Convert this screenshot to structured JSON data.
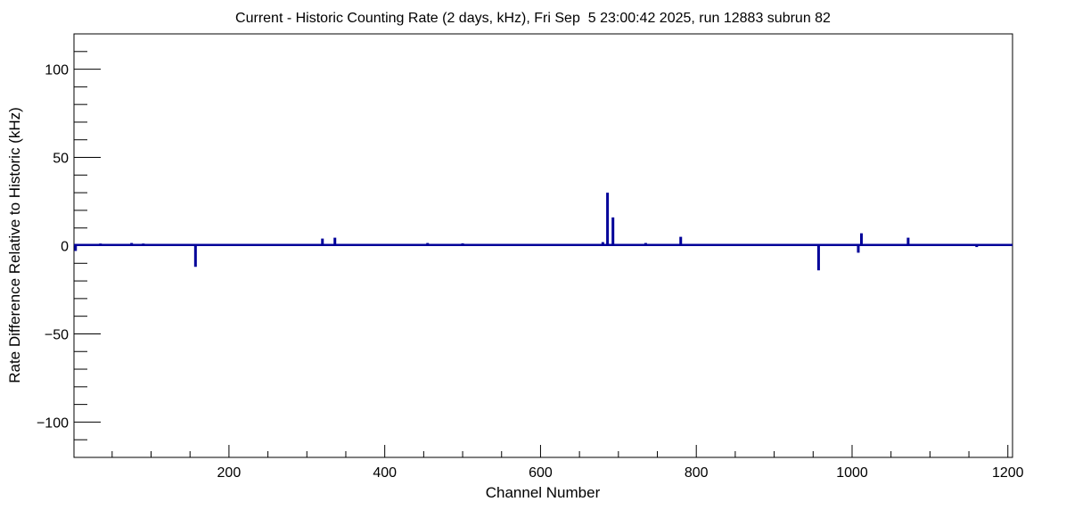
{
  "chart_data": {
    "type": "bar",
    "title": "Current - Historic Counting Rate (2 days, kHz), Fri Sep  5 23:00:42 2025, run 12883 subrun 82",
    "xlabel": "Channel Number",
    "ylabel": "Rate Difference Relative to Historic (kHz)",
    "xlim": [
      1,
      1206
    ],
    "ylim": [
      -120,
      120
    ],
    "x_ticks": [
      200,
      400,
      600,
      800,
      1000,
      1200
    ],
    "y_ticks": [
      -100,
      -50,
      0,
      50,
      100
    ],
    "x_tick_labels": [
      "200",
      "400",
      "600",
      "800",
      "1000",
      "1200"
    ],
    "y_tick_labels": [
      "−100",
      "−50",
      "0",
      "50",
      "100"
    ],
    "grid": false,
    "legend": "none",
    "baseline_value": 0.4,
    "bar_color": "#000099",
    "series": [
      {
        "x": [
          3,
          35,
          75,
          90,
          157,
          320,
          336,
          455,
          500,
          680,
          686,
          693,
          735,
          780,
          957,
          1008,
          1012,
          1072,
          1160
        ],
        "values": [
          -3,
          1.2,
          1.5,
          1.2,
          -12,
          4,
          4.5,
          1.5,
          1.3,
          2,
          30,
          16,
          1.5,
          5,
          -14,
          -4,
          7,
          4.5,
          -0.8
        ]
      }
    ]
  }
}
